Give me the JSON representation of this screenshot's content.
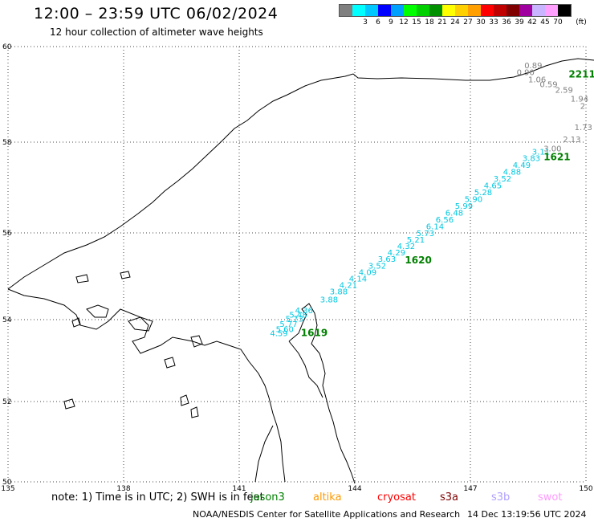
{
  "header": {
    "title": "12:00 – 23:59 UTC 06/02/2024",
    "subtitle": "12 hour collection of altimeter wave heights"
  },
  "legend": {
    "unit": "(ft)",
    "items": [
      {
        "color": "#808080",
        "label": ""
      },
      {
        "color": "#00ffff",
        "label": "3"
      },
      {
        "color": "#00c8ff",
        "label": "6"
      },
      {
        "color": "#0000ff",
        "label": "9"
      },
      {
        "color": "#00a0ff",
        "label": "12"
      },
      {
        "color": "#00ff00",
        "label": "15"
      },
      {
        "color": "#00d000",
        "label": "18"
      },
      {
        "color": "#009000",
        "label": "21"
      },
      {
        "color": "#ffff00",
        "label": "24"
      },
      {
        "color": "#ffd000",
        "label": "27"
      },
      {
        "color": "#ffa000",
        "label": "30"
      },
      {
        "color": "#ff0000",
        "label": "33"
      },
      {
        "color": "#c00000",
        "label": "36"
      },
      {
        "color": "#800000",
        "label": "39"
      },
      {
        "color": "#a000a0",
        "label": "42"
      },
      {
        "color": "#c8b4ff",
        "label": "45"
      },
      {
        "color": "#ffa0ff",
        "label": "70"
      },
      {
        "color": "#000000",
        "label": ""
      }
    ]
  },
  "map": {
    "lon_range": [
      135,
      150
    ],
    "lat_range": [
      50,
      60
    ],
    "lon_ticks": [
      "135",
      "138",
      "141",
      "144",
      "147",
      "150"
    ],
    "lat_ticks": [
      "60",
      "58",
      "56",
      "54",
      "52",
      "50"
    ],
    "grid": "dotted",
    "tracks": [
      {
        "satellite": "jason3",
        "time_label": "1619",
        "color": "#00c8e0",
        "points": [
          [
            141.8,
            53.6,
            "4.59"
          ],
          [
            141.95,
            53.7,
            "5.60"
          ],
          [
            142.05,
            53.82,
            "5.77"
          ],
          [
            142.2,
            53.95,
            "5.73"
          ],
          [
            142.3,
            54.05,
            "5.48"
          ],
          [
            142.45,
            54.15,
            "4.36"
          ]
        ]
      },
      {
        "satellite": "jason3",
        "time_label": "1620",
        "color": "#00c8e0",
        "points": [
          [
            143.1,
            54.4,
            "3.88"
          ],
          [
            143.35,
            54.58,
            "3.88"
          ],
          [
            143.6,
            54.73,
            "4.21"
          ],
          [
            143.85,
            54.88,
            "4.14"
          ],
          [
            144.1,
            55.03,
            "4.09"
          ],
          [
            144.35,
            55.18,
            "3.52"
          ],
          [
            144.6,
            55.33,
            "3.63"
          ],
          [
            144.85,
            55.48,
            "4.29"
          ],
          [
            145.1,
            55.63,
            "4.32"
          ],
          [
            145.35,
            55.78,
            "5.21"
          ],
          [
            145.6,
            55.93,
            "5.73"
          ],
          [
            145.85,
            56.08,
            "6.14"
          ],
          [
            146.1,
            56.23,
            "6.56"
          ],
          [
            146.35,
            56.38,
            "6.48"
          ],
          [
            146.6,
            56.53,
            "5.99"
          ],
          [
            146.85,
            56.68,
            "5.90"
          ],
          [
            147.1,
            56.83,
            "5.28"
          ],
          [
            147.35,
            56.98,
            "4.65"
          ],
          [
            147.6,
            57.13,
            "3.52"
          ],
          [
            147.85,
            57.28,
            "4.88"
          ],
          [
            148.1,
            57.43,
            "4.49"
          ],
          [
            148.35,
            57.58,
            "3.83"
          ],
          [
            148.6,
            57.73,
            "3.11"
          ]
        ]
      },
      {
        "satellite": "jason3",
        "time_label": "1621",
        "color": "#00c8e0",
        "points": []
      },
      {
        "satellite": "jason3",
        "time_label": "2211",
        "color": "#808080",
        "points": [
          [
            148.9,
            57.8,
            "3.00"
          ],
          [
            149.4,
            58.0,
            "2.13"
          ],
          [
            149.7,
            58.25,
            "1.73"
          ],
          [
            149.85,
            58.7,
            "2"
          ],
          [
            149.6,
            58.85,
            "1.94"
          ],
          [
            149.2,
            59.03,
            "2.59"
          ],
          [
            148.8,
            59.15,
            "0.59"
          ],
          [
            148.5,
            59.25,
            "1.06"
          ],
          [
            148.2,
            59.4,
            "0.90"
          ],
          [
            148.4,
            59.55,
            "0.89"
          ]
        ]
      }
    ]
  },
  "footer": {
    "note": "note: 1) Time is in UTC; 2) SWH is in feet",
    "satellites": [
      {
        "name": "jason3",
        "color": "#008000"
      },
      {
        "name": "altika",
        "color": "#ff9900"
      },
      {
        "name": "cryosat",
        "color": "#ff0000"
      },
      {
        "name": "s3a",
        "color": "#800000"
      },
      {
        "name": "s3b",
        "color": "#b0a0ff"
      },
      {
        "name": "swot",
        "color": "#ff99ff"
      }
    ],
    "credit": "NOAA/NESDIS Center for Satellite Applications and Research",
    "generated": "14 Dec 13:19:56 UTC 2024"
  }
}
